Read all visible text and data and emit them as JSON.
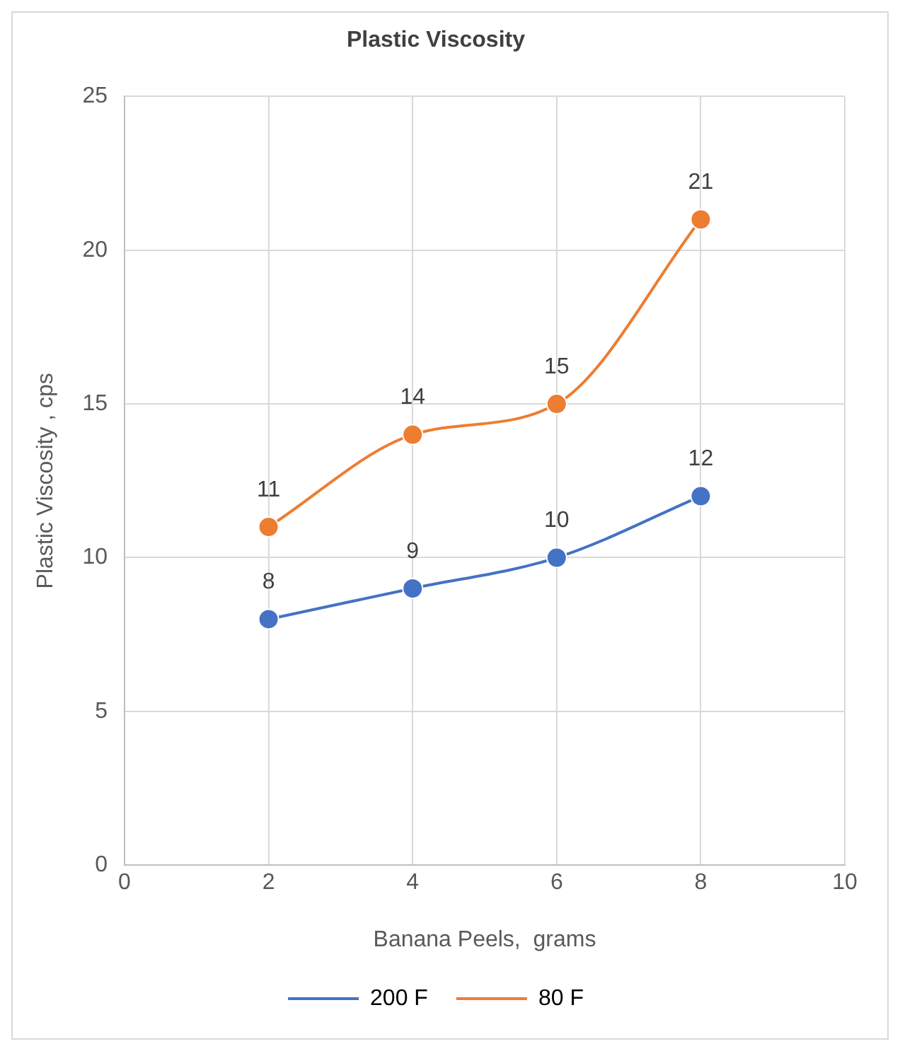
{
  "chart_data": {
    "type": "line",
    "title": "Plastic Viscosity",
    "xlabel": "Banana Peels,  grams",
    "ylabel": "Plastic Viscosity , cps",
    "x": [
      2,
      4,
      6,
      8
    ],
    "series": [
      {
        "name": "200 F",
        "color": "#4472c4",
        "values": [
          8,
          9,
          10,
          12
        ]
      },
      {
        "name": "80 F",
        "color": "#ed7d31",
        "values": [
          11,
          14,
          15,
          21
        ]
      }
    ],
    "xlim": [
      0,
      10
    ],
    "xticks": [
      0,
      2,
      4,
      6,
      8,
      10
    ],
    "ylim": [
      0,
      25
    ],
    "yticks": [
      0,
      5,
      10,
      15,
      20,
      25
    ],
    "grid": true,
    "legend": "bottom",
    "marker": "circle",
    "line_style": "solid",
    "data_labels": true
  }
}
